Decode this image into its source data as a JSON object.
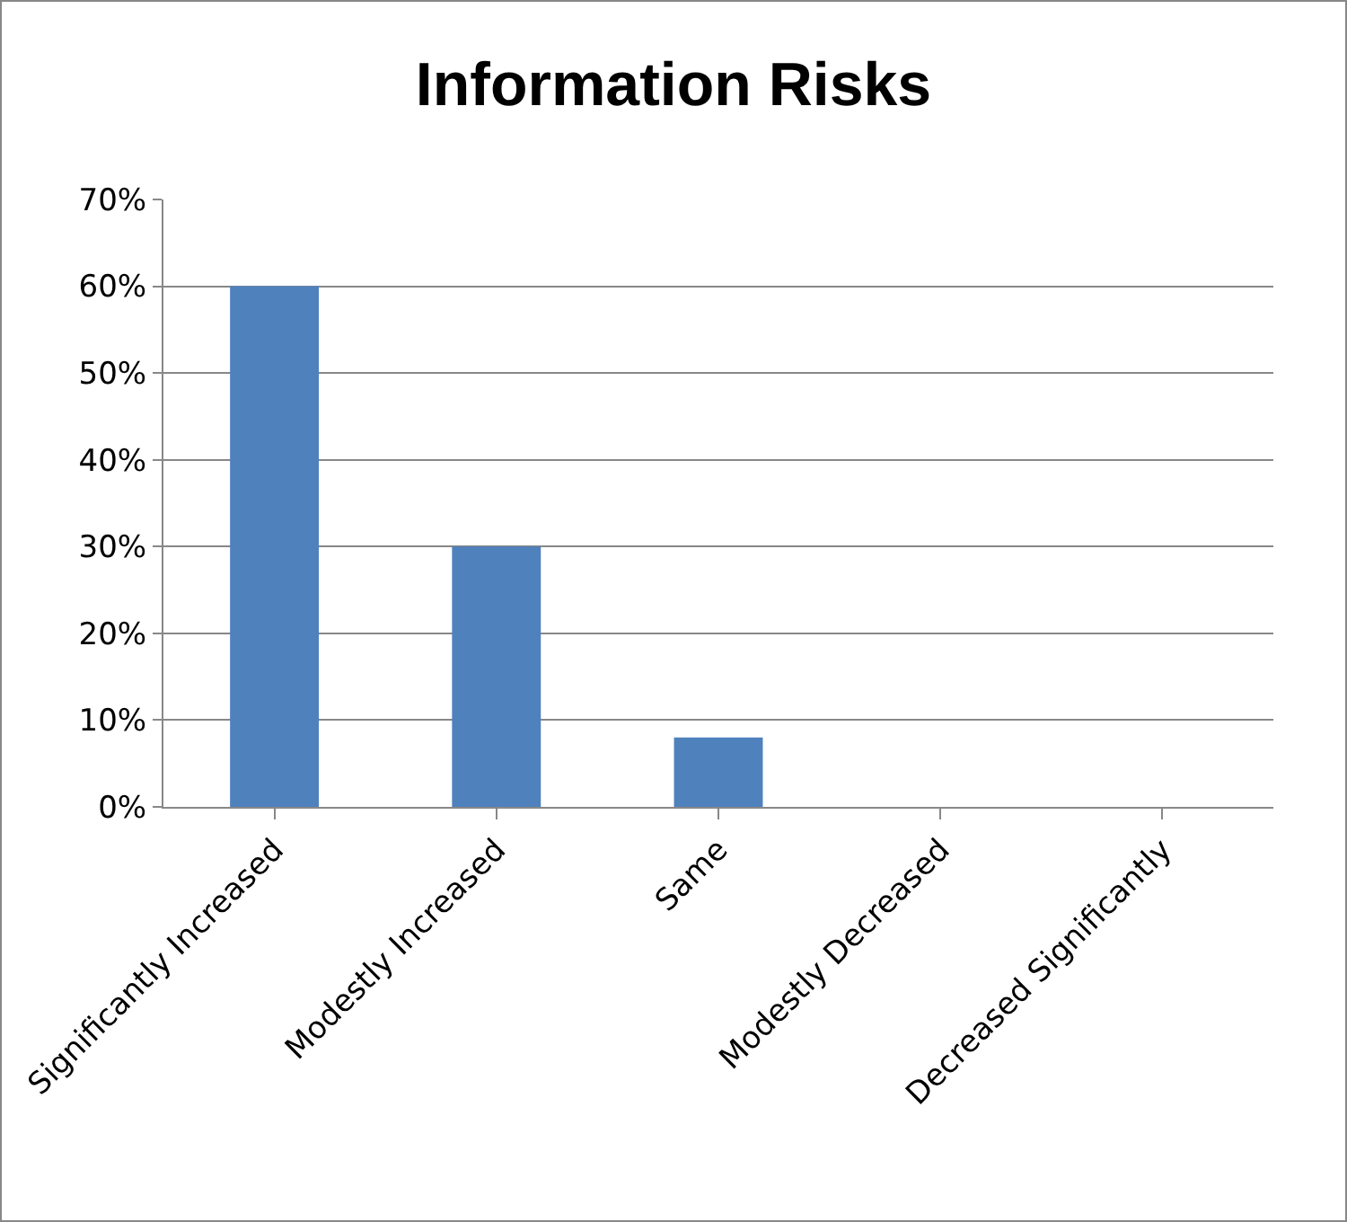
{
  "chart_data": {
    "type": "bar",
    "title": "Information Risks",
    "categories": [
      "Significantly Increased",
      "Modestly Increased",
      "Same",
      "Modestly Decreased",
      "Decreased Significantly"
    ],
    "values": [
      60,
      30,
      8,
      0,
      0
    ],
    "color": "#4f81bd",
    "ylim": [
      0,
      70
    ],
    "yticks": [
      {
        "value": 0,
        "label": "0%"
      },
      {
        "value": 10,
        "label": "10%"
      },
      {
        "value": 20,
        "label": "20%"
      },
      {
        "value": 30,
        "label": "30%"
      },
      {
        "value": 40,
        "label": "40%"
      },
      {
        "value": 50,
        "label": "50%"
      },
      {
        "value": 60,
        "label": "60%"
      },
      {
        "value": 70,
        "label": "70%"
      }
    ],
    "grid": "y"
  }
}
